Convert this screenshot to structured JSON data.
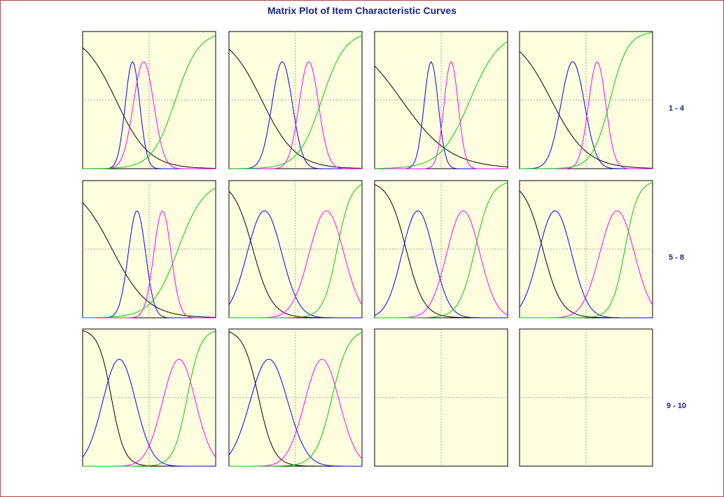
{
  "title": "Matrix Plot of Item Characteristic Curves",
  "colors": {
    "background": "#ffffe0",
    "grid": "#a0a0a0",
    "text": "#1a237e",
    "curve_1": "#000000",
    "curve_2": "#0000ff",
    "curve_3": "#ff00ff",
    "curve_4": "#00cc00"
  },
  "chart_data": {
    "type": "line",
    "layout": "matrix-3x4",
    "grid": true,
    "row_labels": [
      "1 - 4",
      "5 - 8",
      "9 - 10"
    ],
    "series_colors": [
      "#000000",
      "#0000ff",
      "#ff00ff",
      "#00cc00"
    ],
    "panels": [
      {
        "params": [
          [
            -0.6,
            0.67
          ],
          [
            -0.75,
            0.46
          ],
          [
            -0.25,
            0.65
          ],
          [
            0.55,
            0.95
          ]
        ]
      },
      {
        "params": [
          [
            -0.6,
            0.65
          ],
          [
            -0.6,
            0.65
          ],
          [
            0.6,
            0.62
          ],
          [
            0.55,
            0.95
          ]
        ]
      },
      {
        "params": [
          [
            -0.45,
            0.45
          ],
          [
            -0.45,
            0.45
          ],
          [
            0.45,
            0.45
          ],
          [
            0.5,
            0.75
          ]
        ]
      },
      {
        "params": [
          [
            -0.6,
            0.62
          ],
          [
            -0.6,
            0.75
          ],
          [
            0.5,
            0.55
          ],
          [
            0.6,
            1.25
          ]
        ]
      },
      {
        "params": [
          [
            -0.7,
            0.62
          ],
          [
            -0.55,
            0.55
          ],
          [
            0.6,
            0.55
          ],
          [
            0.6,
            0.85
          ]
        ]
      },
      {
        "params": [
          [
            -1.4,
            1.15
          ],
          [
            -1.4,
            1.1
          ],
          [
            1.4,
            1.1
          ],
          [
            1.5,
            1.6
          ]
        ]
      },
      {
        "params": [
          [
            -1.1,
            1.25
          ],
          [
            -1.05,
            1.0
          ],
          [
            1.0,
            1.05
          ],
          [
            1.1,
            1.4
          ]
        ]
      },
      {
        "params": [
          [
            -1.45,
            1.2
          ],
          [
            -1.4,
            1.05
          ],
          [
            1.4,
            1.1
          ],
          [
            1.4,
            1.7
          ]
        ]
      },
      {
        "params": [
          [
            -1.35,
            1.7
          ],
          [
            -1.35,
            1.05
          ],
          [
            1.35,
            1.05
          ],
          [
            1.35,
            1.65
          ]
        ]
      },
      {
        "params": [
          [
            -1.25,
            1.45
          ],
          [
            -1.2,
            1.2
          ],
          [
            1.2,
            1.1
          ],
          [
            1.2,
            1.35
          ]
        ]
      },
      {
        "params": []
      },
      {
        "params": []
      }
    ]
  }
}
